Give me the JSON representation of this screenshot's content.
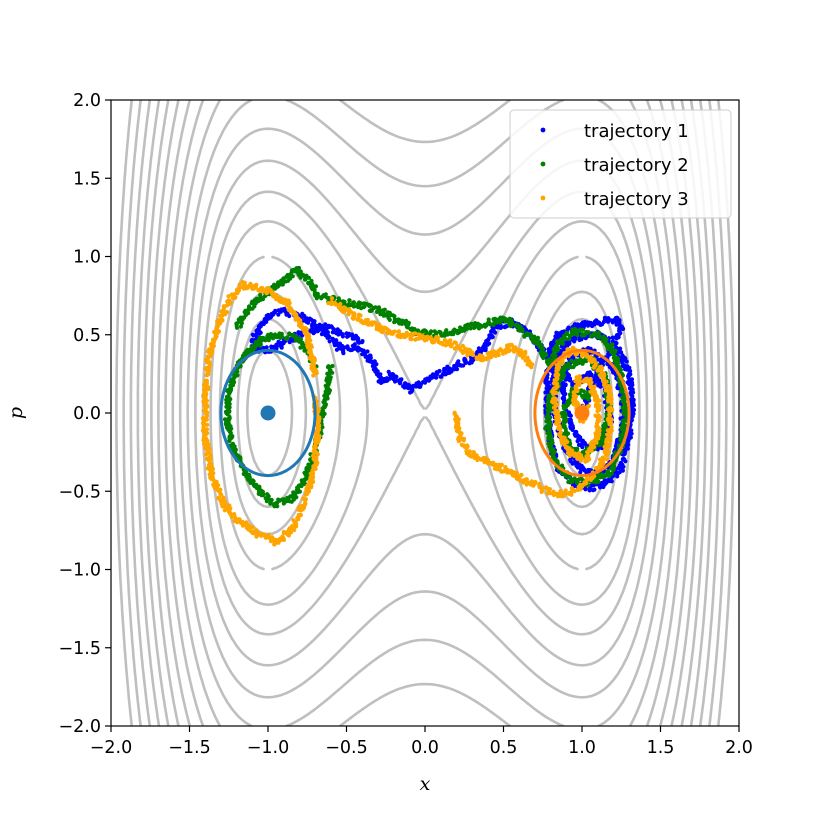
{
  "chart_data": {
    "type": "scatter",
    "title": "",
    "xlabel": "x",
    "ylabel": "p",
    "xlim": [
      -2.0,
      2.0
    ],
    "ylim": [
      -2.0,
      2.0
    ],
    "xticks": [
      "−2.0",
      "−1.5",
      "−1.0",
      "−0.5",
      "0.0",
      "0.5",
      "1.0",
      "1.5",
      "2.0"
    ],
    "yticks": [
      "−2.0",
      "−1.5",
      "−1.0",
      "−0.5",
      "0.0",
      "0.5",
      "1.0",
      "1.5",
      "2.0"
    ],
    "grid": false,
    "legend_position": "top-right",
    "background_contours": {
      "function": "p^2/2 + (x^2 - 1)^2",
      "color": "#bfbfbf",
      "levels": [
        0.08,
        0.18,
        0.3,
        0.5,
        0.75,
        1.0,
        1.3,
        1.65,
        2.05,
        2.5,
        3.0,
        3.55,
        4.15,
        4.8,
        5.5,
        6.3,
        7.2,
        8.2
      ]
    },
    "circles": [
      {
        "center": [
          -1.0,
          0.0
        ],
        "radius_x": 0.3,
        "radius_y": 0.4,
        "color": "#1f77b4"
      },
      {
        "center": [
          1.0,
          0.0
        ],
        "radius_x": 0.3,
        "radius_y": 0.4,
        "color": "#ff7f0e"
      }
    ],
    "center_points": [
      {
        "x": -1.0,
        "y": 0.0,
        "color": "#1f77b4"
      },
      {
        "x": 1.0,
        "y": 0.0,
        "color": "#ff7f0e"
      }
    ],
    "series": [
      {
        "name": "trajectory 1",
        "color": "#0000ff",
        "points": [
          [
            1.0,
            0.0
          ],
          [
            1.05,
            0.15
          ],
          [
            1.12,
            0.3
          ],
          [
            1.2,
            0.45
          ],
          [
            1.25,
            0.55
          ],
          [
            1.22,
            0.6
          ],
          [
            1.1,
            0.58
          ],
          [
            0.95,
            0.55
          ],
          [
            0.85,
            0.5
          ],
          [
            0.8,
            0.4
          ],
          [
            0.78,
            0.2
          ],
          [
            0.78,
            0.0
          ],
          [
            0.8,
            -0.2
          ],
          [
            0.85,
            -0.35
          ],
          [
            0.95,
            -0.45
          ],
          [
            1.05,
            -0.48
          ],
          [
            1.15,
            -0.45
          ],
          [
            1.25,
            -0.35
          ],
          [
            1.3,
            -0.15
          ],
          [
            1.32,
            0.05
          ],
          [
            1.3,
            0.25
          ],
          [
            1.22,
            0.42
          ],
          [
            1.1,
            0.5
          ],
          [
            0.95,
            0.48
          ],
          [
            0.85,
            0.38
          ],
          [
            0.82,
            0.2
          ],
          [
            0.83,
            0.0
          ],
          [
            0.88,
            -0.2
          ],
          [
            0.98,
            -0.35
          ],
          [
            1.1,
            -0.4
          ],
          [
            1.2,
            -0.3
          ],
          [
            1.26,
            -0.1
          ],
          [
            1.26,
            0.1
          ],
          [
            1.2,
            0.3
          ],
          [
            1.05,
            0.4
          ],
          [
            0.92,
            0.35
          ],
          [
            0.88,
            0.15
          ],
          [
            0.92,
            -0.05
          ],
          [
            1.0,
            -0.2
          ],
          [
            1.12,
            -0.22
          ],
          [
            1.18,
            -0.05
          ],
          [
            1.15,
            0.15
          ],
          [
            1.05,
            0.25
          ],
          [
            0.95,
            0.18
          ],
          [
            0.75,
            0.4
          ],
          [
            0.65,
            0.52
          ],
          [
            0.55,
            0.58
          ],
          [
            0.45,
            0.55
          ],
          [
            0.38,
            0.42
          ],
          [
            0.3,
            0.35
          ],
          [
            0.2,
            0.3
          ],
          [
            0.1,
            0.25
          ],
          [
            0.0,
            0.2
          ],
          [
            -0.08,
            0.15
          ],
          [
            -0.15,
            0.2
          ],
          [
            -0.22,
            0.25
          ],
          [
            -0.28,
            0.2
          ],
          [
            -0.32,
            0.3
          ],
          [
            -0.38,
            0.38
          ],
          [
            -0.45,
            0.42
          ],
          [
            -0.52,
            0.4
          ],
          [
            -0.58,
            0.45
          ],
          [
            -0.65,
            0.52
          ],
          [
            -0.72,
            0.58
          ],
          [
            -0.8,
            0.62
          ],
          [
            -0.9,
            0.65
          ],
          [
            -1.0,
            0.62
          ],
          [
            -1.05,
            0.55
          ],
          [
            -1.1,
            0.45
          ],
          [
            -1.05,
            0.4
          ],
          [
            -0.95,
            0.42
          ],
          [
            -0.85,
            0.48
          ],
          [
            -0.75,
            0.52
          ],
          [
            -0.65,
            0.55
          ],
          [
            -0.55,
            0.52
          ],
          [
            -0.45,
            0.48
          ],
          [
            -0.4,
            0.45
          ]
        ]
      },
      {
        "name": "trajectory 2",
        "color": "#008000",
        "points": [
          [
            -0.7,
            0.3
          ],
          [
            -0.75,
            0.4
          ],
          [
            -0.82,
            0.48
          ],
          [
            -0.92,
            0.5
          ],
          [
            -1.02,
            0.48
          ],
          [
            -1.12,
            0.4
          ],
          [
            -1.2,
            0.28
          ],
          [
            -1.25,
            0.12
          ],
          [
            -1.26,
            -0.05
          ],
          [
            -1.22,
            -0.22
          ],
          [
            -1.15,
            -0.38
          ],
          [
            -1.05,
            -0.5
          ],
          [
            -0.95,
            -0.58
          ],
          [
            -0.85,
            -0.55
          ],
          [
            -0.78,
            -0.45
          ],
          [
            -0.72,
            -0.3
          ],
          [
            -0.68,
            -0.15
          ],
          [
            -0.65,
            0.0
          ],
          [
            -0.62,
            0.15
          ],
          [
            -0.6,
            0.3
          ],
          [
            -1.2,
            0.55
          ],
          [
            -1.1,
            0.7
          ],
          [
            -0.95,
            0.8
          ],
          [
            -0.82,
            0.92
          ],
          [
            -0.75,
            0.85
          ],
          [
            -0.68,
            0.75
          ],
          [
            -0.58,
            0.72
          ],
          [
            -0.48,
            0.7
          ],
          [
            -0.38,
            0.68
          ],
          [
            -0.28,
            0.65
          ],
          [
            -0.15,
            0.58
          ],
          [
            -0.05,
            0.52
          ],
          [
            0.05,
            0.5
          ],
          [
            0.18,
            0.52
          ],
          [
            0.3,
            0.55
          ],
          [
            0.42,
            0.58
          ],
          [
            0.5,
            0.6
          ],
          [
            0.58,
            0.56
          ],
          [
            0.65,
            0.5
          ],
          [
            0.72,
            0.45
          ],
          [
            0.8,
            0.3
          ],
          [
            0.85,
            0.45
          ],
          [
            0.95,
            0.52
          ],
          [
            1.1,
            0.5
          ],
          [
            1.2,
            0.4
          ],
          [
            1.25,
            0.22
          ],
          [
            1.28,
            0.0
          ],
          [
            1.25,
            -0.2
          ],
          [
            1.18,
            -0.38
          ],
          [
            1.05,
            -0.45
          ],
          [
            0.92,
            -0.42
          ],
          [
            0.82,
            -0.3
          ],
          [
            0.78,
            -0.1
          ],
          [
            0.8,
            0.1
          ],
          [
            0.9,
            0.3
          ],
          [
            1.05,
            0.35
          ],
          [
            1.15,
            0.22
          ],
          [
            1.18,
            0.02
          ],
          [
            1.12,
            -0.18
          ],
          [
            1.0,
            -0.28
          ],
          [
            0.9,
            -0.18
          ],
          [
            0.88,
            0.0
          ],
          [
            0.95,
            0.15
          ],
          [
            1.05,
            0.1
          ]
        ]
      },
      {
        "name": "trajectory 3",
        "color": "#ffa500",
        "points": [
          [
            -0.7,
            0.25
          ],
          [
            -0.75,
            0.5
          ],
          [
            -0.88,
            0.7
          ],
          [
            -1.0,
            0.78
          ],
          [
            -1.15,
            0.82
          ],
          [
            -1.25,
            0.72
          ],
          [
            -1.32,
            0.55
          ],
          [
            -1.38,
            0.35
          ],
          [
            -1.4,
            0.1
          ],
          [
            -1.4,
            -0.15
          ],
          [
            -1.36,
            -0.4
          ],
          [
            -1.28,
            -0.58
          ],
          [
            -1.18,
            -0.7
          ],
          [
            -1.05,
            -0.78
          ],
          [
            -0.95,
            -0.82
          ],
          [
            -0.85,
            -0.75
          ],
          [
            -0.78,
            -0.6
          ],
          [
            -0.73,
            -0.45
          ],
          [
            -0.7,
            -0.3
          ],
          [
            -0.68,
            -0.1
          ],
          [
            -0.7,
            0.1
          ],
          [
            -0.6,
            0.72
          ],
          [
            -0.45,
            0.62
          ],
          [
            -0.3,
            0.55
          ],
          [
            -0.15,
            0.5
          ],
          [
            0.0,
            0.48
          ],
          [
            0.15,
            0.45
          ],
          [
            0.25,
            0.4
          ],
          [
            0.35,
            0.35
          ],
          [
            0.45,
            0.38
          ],
          [
            0.55,
            0.42
          ],
          [
            0.62,
            0.38
          ],
          [
            0.68,
            0.3
          ],
          [
            0.2,
            0.0
          ],
          [
            0.22,
            -0.15
          ],
          [
            0.28,
            -0.25
          ],
          [
            0.38,
            -0.3
          ],
          [
            0.48,
            -0.35
          ],
          [
            0.58,
            -0.4
          ],
          [
            0.68,
            -0.45
          ],
          [
            0.78,
            -0.5
          ],
          [
            0.88,
            -0.52
          ],
          [
            0.98,
            -0.48
          ],
          [
            1.08,
            -0.4
          ],
          [
            1.15,
            -0.28
          ],
          [
            1.18,
            -0.1
          ],
          [
            1.18,
            0.1
          ],
          [
            1.12,
            0.28
          ],
          [
            1.02,
            0.38
          ],
          [
            0.92,
            0.4
          ],
          [
            0.85,
            0.3
          ],
          [
            0.82,
            0.1
          ],
          [
            0.85,
            -0.1
          ],
          [
            0.92,
            -0.25
          ],
          [
            1.02,
            -0.3
          ],
          [
            1.1,
            -0.15
          ],
          [
            1.1,
            0.05
          ],
          [
            1.05,
            0.2
          ],
          [
            0.98,
            0.22
          ],
          [
            0.95,
            0.1
          ],
          [
            1.0,
            -0.05
          ],
          [
            1.03,
            0.05
          ]
        ]
      }
    ]
  }
}
